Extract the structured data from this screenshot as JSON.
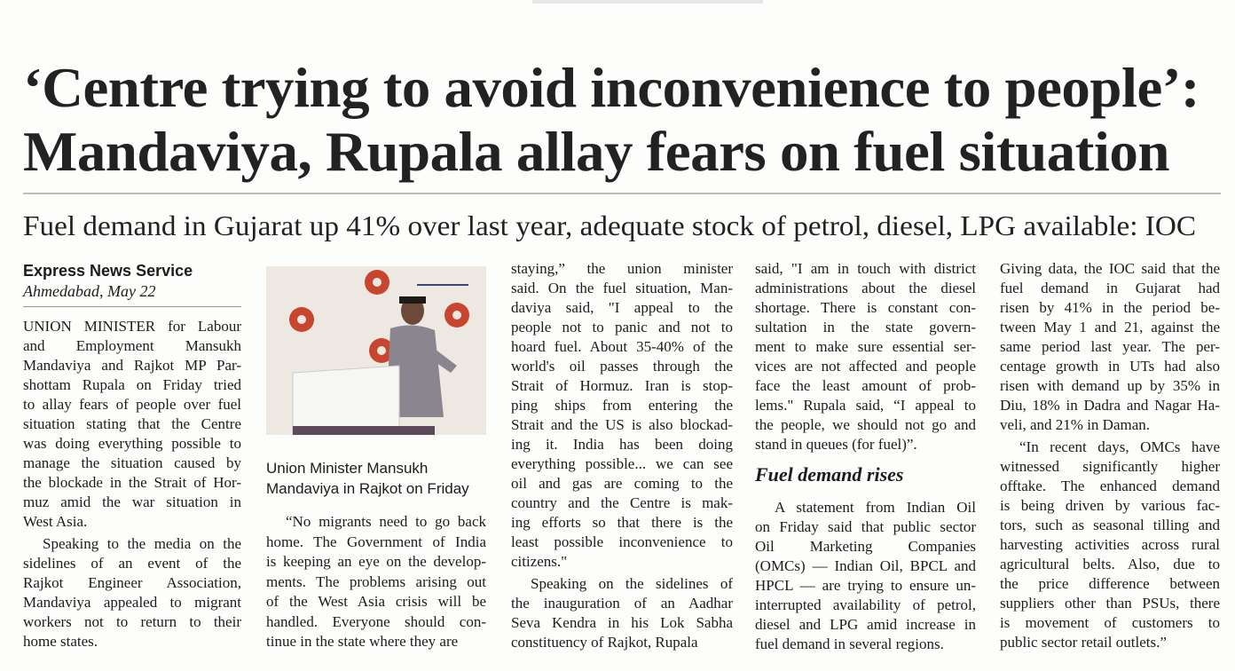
{
  "headline": {
    "lines": [
      "‘Centre trying to avoid inconvenience to people’:",
      "Mandaviya, Rupala allay fears on fuel situation"
    ]
  },
  "subheadline": "Fuel demand in Gujarat up 41% over last year, adequate stock of petrol, diesel, LPG available: IOC",
  "byline": {
    "service": "Express News Service",
    "dateline": "Ahmedabad, May 22"
  },
  "photo": {
    "caption": [
      "Union Minister Mansukh",
      "Mandaviya in Rajkot on Friday"
    ]
  },
  "columns": [
    {
      "paragraphs": [
        [
          "UNION MINISTER for Labour",
          "and Employment Mansukh",
          "Mandaviya and Rajkot MP Par-",
          "shottam Rupala on Friday tried",
          "to allay fears of people over fuel",
          "situation stating that the Centre",
          "was doing everything possible to",
          "manage the situation caused by",
          "the blockade in the Strait of Hor-",
          "muz amid the war situation in",
          "West Asia."
        ],
        [
          "Speaking to the media on the",
          "sidelines of an event of the",
          "Rajkot Engineer Association,",
          "Mandaviya appealed to migrant",
          "workers not to return to their",
          "home states."
        ]
      ]
    },
    {
      "paragraphs": [
        [
          "“No migrants need to go back",
          "home. The Government of India",
          "is keeping an eye on the develop-",
          "ments. The problems arising out",
          "of the West Asia crisis will be",
          "handled. Everyone should con-",
          "tinue in the state where they are"
        ]
      ]
    },
    {
      "paragraphs": [
        [
          "staying,” the union minister",
          "said. On the fuel situation, Man-",
          "daviya said, \"I appeal to the",
          "people not to panic and not to",
          "hoard fuel. About 35-40% of the",
          "world's oil passes through the",
          "Strait of Hormuz. Iran is stop-",
          "ping ships from entering the",
          "Strait and the US is also blockad-",
          "ing it. India has been doing",
          "everything possible... we can see",
          "oil and gas are coming to the",
          "country and the Centre is mak-",
          "ing efforts so that there is the",
          "least possible inconvenience to",
          "citizens.\""
        ],
        [
          "Speaking on the sidelines of",
          "the inauguration of an Aadhar",
          "Seva Kendra in his Lok Sabha",
          "constituency of Rajkot, Rupala"
        ]
      ]
    },
    {
      "paragraphs": [
        [
          "said, \"I am in touch with district",
          "administrations about the diesel",
          "shortage. There is constant con-",
          "sultation in the state govern-",
          "ment to make sure essential ser-",
          "vices are not affected and people",
          "face the least amount of prob-",
          "lems.\" Rupala said, “I appeal to",
          "the people, we should not go and",
          "stand in queues (for fuel)”."
        ],
        [
          "A statement from Indian Oil",
          "on Friday said that public sector",
          "Oil Marketing Companies",
          "(OMCs) — Indian Oil, BPCL and",
          "HPCL — are trying to ensure un-",
          "interrupted availability of petrol,",
          "diesel and LPG amid increase in",
          "fuel demand in several regions."
        ]
      ],
      "crosshead": "Fuel demand rises"
    },
    {
      "paragraphs": [
        [
          "Giving data, the IOC said that the",
          "fuel demand in Gujarat had",
          "risen by 41% in the period be-",
          "tween May 1 and 21, against the",
          "same period last year. The per-",
          "centage growth in UTs had also",
          "risen with demand up by 35% in",
          "Diu, 18% in Dadra and Nagar Ha-",
          "veli, and 21% in Daman."
        ],
        [
          "“In recent days, OMCs have",
          "witnessed significantly higher",
          "offtake. The enhanced demand",
          "is being driven by various fac-",
          "tors, such as seasonal tilling and",
          "harvesting activities across rural",
          "agricultural belts. Also, due to",
          "the price difference between",
          "suppliers other than PSUs, there",
          "is movement of customers to",
          "public sector retail outlets.”"
        ]
      ]
    }
  ]
}
